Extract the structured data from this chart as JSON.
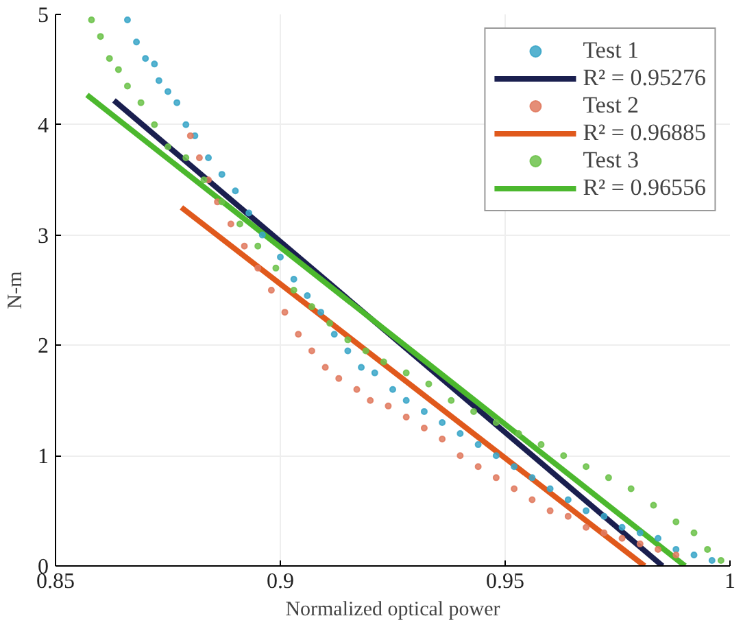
{
  "chart_data": {
    "type": "scatter",
    "xlabel": "Normalized optical power",
    "ylabel": "N-m",
    "xlim": [
      0.85,
      1
    ],
    "ylim": [
      0,
      5
    ],
    "xticks": [
      0.85,
      0.9,
      0.95,
      1
    ],
    "yticks": [
      0,
      1,
      2,
      3,
      4,
      5
    ],
    "grid": true,
    "legend": "top right",
    "series": [
      {
        "name": "Test 1",
        "marker": "circle",
        "color": "#3aa6c8",
        "x": [
          0.866,
          0.868,
          0.87,
          0.872,
          0.873,
          0.875,
          0.877,
          0.879,
          0.881,
          0.884,
          0.887,
          0.89,
          0.893,
          0.896,
          0.9,
          0.903,
          0.906,
          0.909,
          0.912,
          0.915,
          0.918,
          0.921,
          0.925,
          0.928,
          0.932,
          0.936,
          0.94,
          0.944,
          0.948,
          0.952,
          0.956,
          0.96,
          0.964,
          0.968,
          0.972,
          0.976,
          0.98,
          0.984,
          0.988,
          0.992,
          0.996
        ],
        "values": [
          4.95,
          4.75,
          4.6,
          4.55,
          4.4,
          4.3,
          4.2,
          4.0,
          3.9,
          3.7,
          3.55,
          3.4,
          3.2,
          3.0,
          2.8,
          2.6,
          2.45,
          2.3,
          2.1,
          1.95,
          1.8,
          1.75,
          1.6,
          1.5,
          1.4,
          1.3,
          1.2,
          1.1,
          1.0,
          0.9,
          0.8,
          0.7,
          0.6,
          0.5,
          0.45,
          0.35,
          0.3,
          0.25,
          0.15,
          0.1,
          0.05
        ]
      },
      {
        "name": "R² = 0.95276",
        "type": "line",
        "color": "#1a1f4f",
        "x": [
          0.863,
          0.985
        ],
        "values": [
          4.22,
          0
        ]
      },
      {
        "name": "Test 2",
        "marker": "circle",
        "color": "#e07a5f",
        "x": [
          0.88,
          0.882,
          0.884,
          0.886,
          0.889,
          0.892,
          0.895,
          0.898,
          0.901,
          0.904,
          0.907,
          0.91,
          0.913,
          0.917,
          0.92,
          0.924,
          0.928,
          0.932,
          0.936,
          0.94,
          0.944,
          0.948,
          0.952,
          0.956,
          0.96,
          0.964,
          0.968,
          0.972,
          0.976,
          0.98,
          0.984,
          0.988
        ],
        "values": [
          3.9,
          3.7,
          3.5,
          3.3,
          3.1,
          2.9,
          2.7,
          2.5,
          2.3,
          2.1,
          1.95,
          1.8,
          1.7,
          1.6,
          1.5,
          1.45,
          1.35,
          1.25,
          1.15,
          1.0,
          0.9,
          0.8,
          0.7,
          0.6,
          0.5,
          0.45,
          0.35,
          0.3,
          0.25,
          0.2,
          0.15,
          0.1
        ]
      },
      {
        "name": "R² = 0.96885",
        "type": "line",
        "color": "#e0591c",
        "x": [
          0.878,
          0.981
        ],
        "values": [
          3.25,
          0
        ]
      },
      {
        "name": "Test 3",
        "marker": "circle",
        "color": "#6cc24a",
        "x": [
          0.858,
          0.86,
          0.862,
          0.864,
          0.866,
          0.869,
          0.872,
          0.875,
          0.879,
          0.883,
          0.887,
          0.891,
          0.895,
          0.899,
          0.903,
          0.907,
          0.911,
          0.915,
          0.919,
          0.923,
          0.928,
          0.933,
          0.938,
          0.943,
          0.948,
          0.953,
          0.958,
          0.963,
          0.968,
          0.973,
          0.978,
          0.983,
          0.988,
          0.992,
          0.995,
          0.998
        ],
        "values": [
          4.95,
          4.8,
          4.6,
          4.5,
          4.35,
          4.2,
          4.0,
          3.8,
          3.7,
          3.5,
          3.3,
          3.1,
          2.9,
          2.7,
          2.5,
          2.35,
          2.2,
          2.05,
          1.95,
          1.85,
          1.75,
          1.65,
          1.5,
          1.4,
          1.3,
          1.2,
          1.1,
          1.0,
          0.9,
          0.8,
          0.7,
          0.55,
          0.4,
          0.3,
          0.15,
          0.05
        ]
      },
      {
        "name": "R² = 0.96556",
        "type": "line",
        "color": "#4cb82e",
        "x": [
          0.857,
          0.99
        ],
        "values": [
          4.27,
          0
        ]
      }
    ]
  }
}
